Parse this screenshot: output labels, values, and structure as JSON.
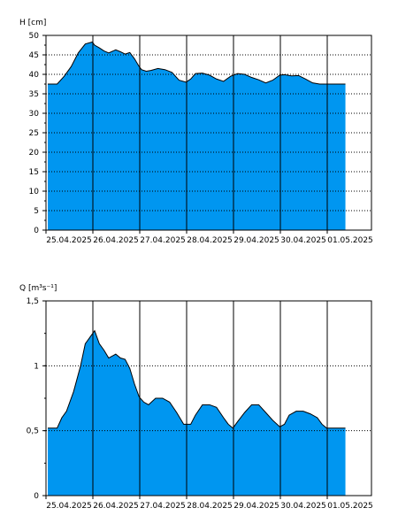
{
  "chart_data": [
    {
      "type": "area",
      "ylabel": "H [cm]",
      "ylim": [
        0,
        50
      ],
      "y_ticks": [
        "0",
        "5",
        "10",
        "15",
        "20",
        "25",
        "30",
        "35",
        "40",
        "45",
        "50"
      ],
      "y_tick_values": [
        0,
        5,
        10,
        15,
        20,
        25,
        30,
        35,
        40,
        45,
        50
      ],
      "x_tick_labels": [
        "25.04.2025",
        "26.04.2025",
        "27.04.2025",
        "28.04.2025",
        "29.04.2025",
        "30.04.2025",
        "01.05.2025"
      ],
      "x_range_days": [
        0,
        7.0
      ],
      "grid": true,
      "fill_color": "#0096F0",
      "line_color": "#000000",
      "x": [
        0,
        0.2,
        0.35,
        0.5,
        0.65,
        0.8,
        0.95,
        1.0,
        1.1,
        1.2,
        1.3,
        1.45,
        1.55,
        1.65,
        1.75,
        1.85,
        1.95,
        2.0,
        2.1,
        2.2,
        2.35,
        2.5,
        2.65,
        2.8,
        2.95,
        3.05,
        3.15,
        3.3,
        3.45,
        3.6,
        3.75,
        3.9,
        4.05,
        4.2,
        4.35,
        4.5,
        4.65,
        4.8,
        4.95,
        5.05,
        5.2,
        5.35,
        5.5,
        5.65,
        5.8,
        5.95,
        6.0,
        6.1,
        6.2,
        6.35
      ],
      "y": [
        37.5,
        37.5,
        39.5,
        42.0,
        45.5,
        47.8,
        48.3,
        47.5,
        46.8,
        46.0,
        45.5,
        46.3,
        45.8,
        45.2,
        45.6,
        44.0,
        42.0,
        41.2,
        40.8,
        41.0,
        41.5,
        41.2,
        40.5,
        38.5,
        38.0,
        38.8,
        40.2,
        40.3,
        39.8,
        38.8,
        38.2,
        39.5,
        40.2,
        40.0,
        39.2,
        38.6,
        37.8,
        38.5,
        39.8,
        39.9,
        39.6,
        39.7,
        38.8,
        37.8,
        37.5,
        37.5,
        37.5,
        37.5,
        37.5,
        37.5
      ]
    },
    {
      "type": "area",
      "ylabel": "Q [m³s⁻¹]",
      "ylim": [
        0,
        1.5
      ],
      "y_ticks": [
        "0",
        "0,5",
        "1",
        "1,5"
      ],
      "y_tick_values": [
        0,
        0.5,
        1.0,
        1.5
      ],
      "x_tick_labels": [
        "25.04.2025",
        "26.04.2025",
        "27.04.2025",
        "28.04.2025",
        "29.04.2025",
        "30.04.2025",
        "01.05.2025"
      ],
      "x_range_days": [
        0,
        7.0
      ],
      "grid": true,
      "fill_color": "#0096F0",
      "line_color": "#000000",
      "x": [
        0,
        0.2,
        0.3,
        0.4,
        0.55,
        0.7,
        0.8,
        0.9,
        1.0,
        1.1,
        1.2,
        1.3,
        1.45,
        1.55,
        1.65,
        1.75,
        1.85,
        1.95,
        2.05,
        2.15,
        2.3,
        2.45,
        2.6,
        2.75,
        2.9,
        3.05,
        3.15,
        3.3,
        3.45,
        3.6,
        3.75,
        3.85,
        3.95,
        4.05,
        4.2,
        4.35,
        4.5,
        4.65,
        4.8,
        4.95,
        5.05,
        5.15,
        5.3,
        5.45,
        5.6,
        5.75,
        5.85,
        5.95,
        6.05,
        6.2,
        6.35
      ],
      "y": [
        0.52,
        0.52,
        0.6,
        0.65,
        0.8,
        1.0,
        1.17,
        1.22,
        1.27,
        1.17,
        1.12,
        1.06,
        1.09,
        1.06,
        1.05,
        0.98,
        0.86,
        0.76,
        0.72,
        0.7,
        0.75,
        0.75,
        0.72,
        0.64,
        0.55,
        0.55,
        0.62,
        0.7,
        0.7,
        0.68,
        0.6,
        0.55,
        0.52,
        0.57,
        0.64,
        0.7,
        0.7,
        0.64,
        0.58,
        0.53,
        0.55,
        0.62,
        0.65,
        0.65,
        0.63,
        0.6,
        0.55,
        0.52,
        0.52,
        0.52,
        0.52
      ]
    }
  ]
}
